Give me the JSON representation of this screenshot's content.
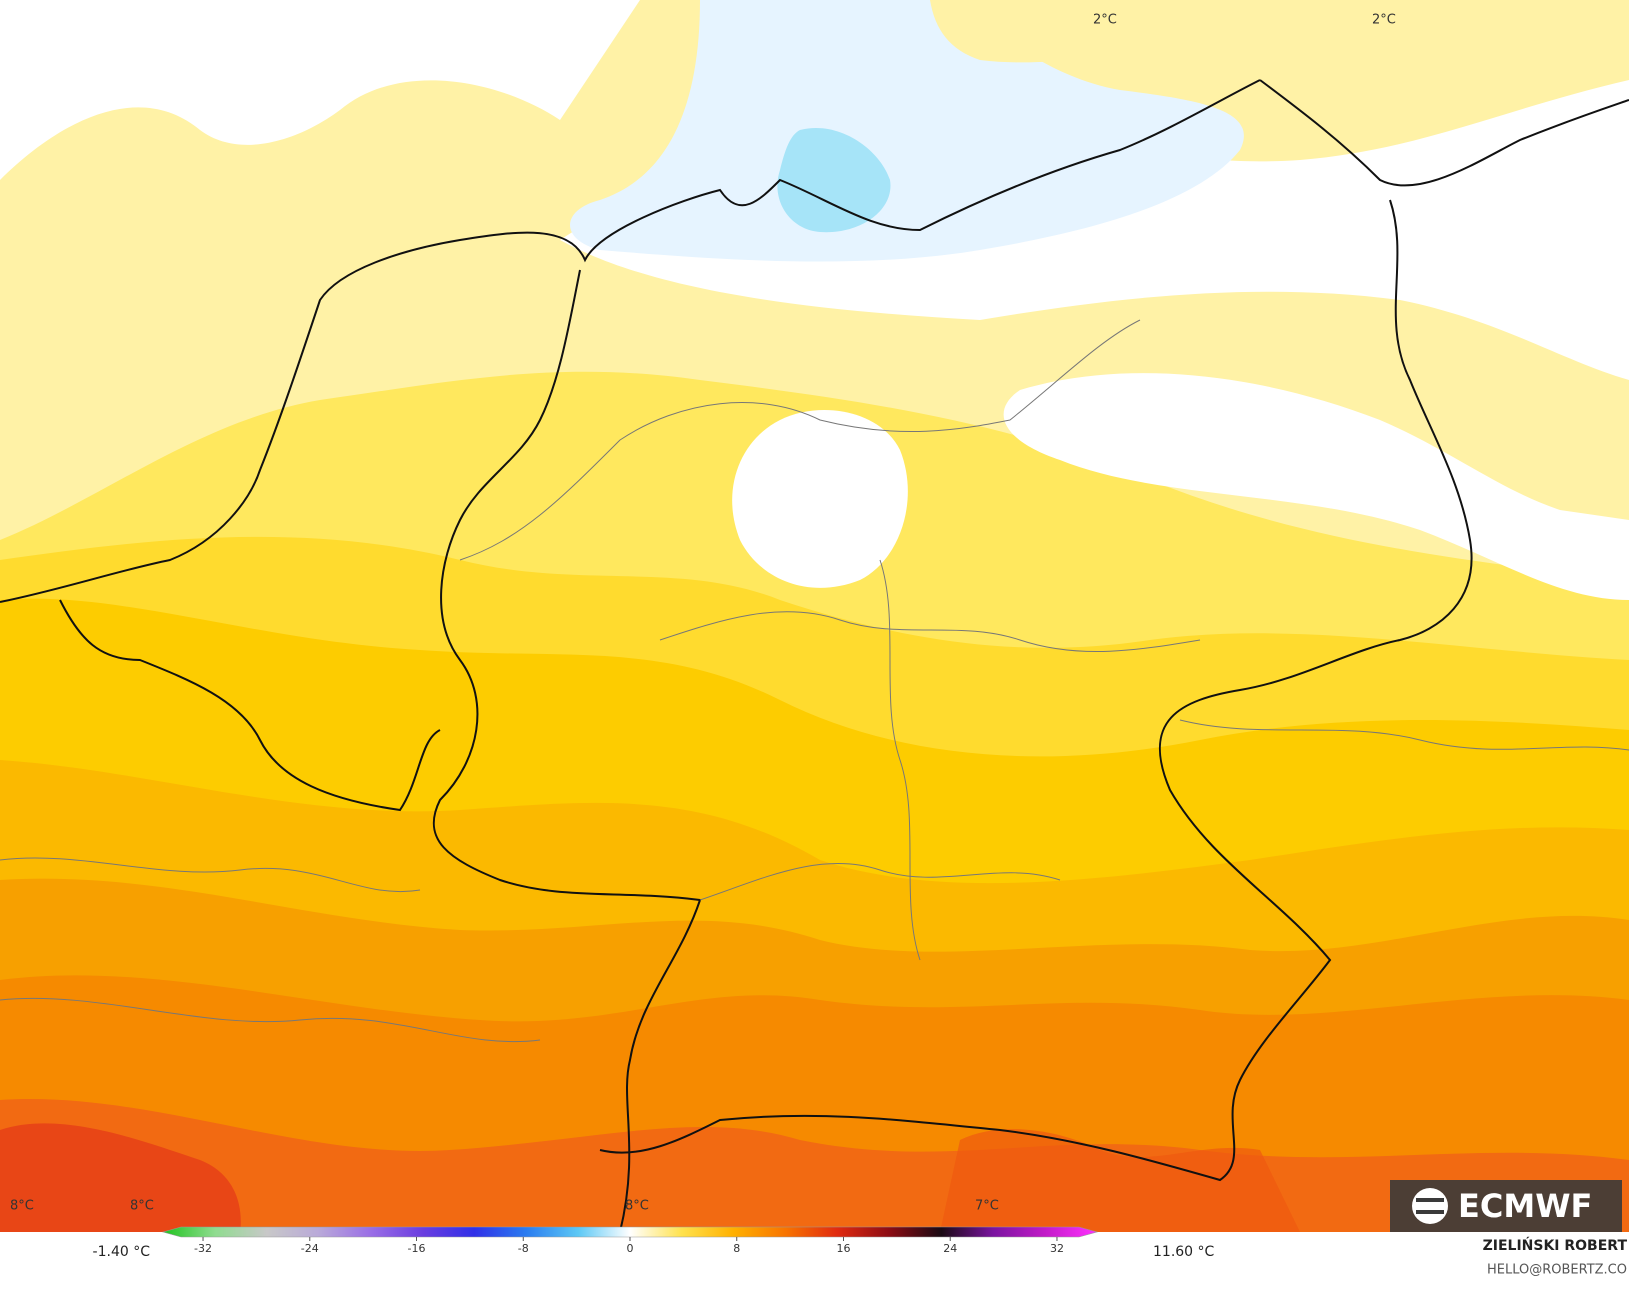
{
  "map": {
    "labels": [
      "2°C",
      "2°C",
      "8°C",
      "8°C",
      "8°C",
      "7°C"
    ]
  },
  "legend": {
    "min_label": "-1.40 °C",
    "max_label": "11.60 °C",
    "colorbar": {
      "lim": [
        -35,
        35
      ],
      "ticks": [
        -32,
        -24,
        -16,
        -8,
        0,
        8,
        16,
        24,
        32
      ],
      "colors": [
        "#1fc41f",
        "#8fdc8f",
        "#c8c8c8",
        "#b9a9d9",
        "#9a6ee6",
        "#6a3de0",
        "#3030e8",
        "#2a7cf0",
        "#5cc8f5",
        "#ffffff",
        "#ffe24d",
        "#ffb000",
        "#f87400",
        "#e02a10",
        "#8c0c14",
        "#1a0a14",
        "#7a14a0",
        "#c21ac8",
        "#ff30ff"
      ]
    }
  },
  "credit": {
    "author": "ZIELIŃSKI ROBERT",
    "email": "HELLO@ROBERTZ.CO"
  },
  "logo": "ECMWF"
}
